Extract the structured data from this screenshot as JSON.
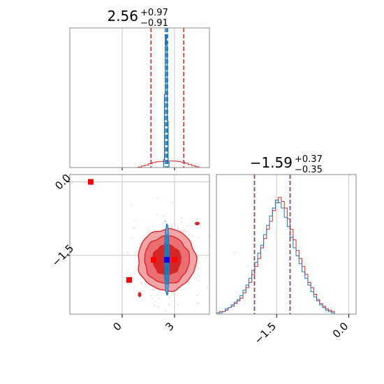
{
  "chart_data": {
    "type": "corner",
    "colors": {
      "red": "#d62728",
      "red_light": "#f3a4a6",
      "red_mid": "#ea6f72",
      "blue": "#1f77b4",
      "grid": "#c8c8c8",
      "frame": "#888888",
      "marker_red": "#ff0000",
      "marker_blue": "#0000ff"
    },
    "param1": {
      "title": {
        "median": "2.56",
        "plus": "+0.97",
        "minus": "−0.91"
      },
      "median": 2.56,
      "quantiles": [
        1.65,
        3.53
      ],
      "blue_quantiles": [
        2.47,
        2.6
      ],
      "xlim": [
        -3.0,
        5.0
      ],
      "ticks": [
        0,
        3
      ],
      "tick_labels": [
        "0",
        "3"
      ],
      "hist_red": [
        0.004,
        0.011,
        0.019,
        0.028,
        0.036,
        0.041,
        0.044,
        0.046,
        0.047,
        0.047,
        0.046,
        0.043,
        0.038,
        0.031,
        0.022,
        0.013,
        0.006
      ],
      "hist_red_range": [
        0.9,
        4.4
      ],
      "hist_blue": [
        0.06,
        0.55,
        1.0,
        0.92,
        0.35,
        0.04
      ],
      "hist_blue_range": [
        2.38,
        2.68
      ]
    },
    "param2": {
      "title": {
        "median": "−1.59",
        "plus": "+0.37",
        "minus": "−0.35"
      },
      "median": -1.59,
      "quantiles": [
        -1.96,
        -1.22
      ],
      "blue_quantiles": [
        -1.96,
        -1.22
      ],
      "xlim": [
        -2.75,
        0.15
      ],
      "ylim": [
        -2.7,
        0.15
      ],
      "ticks": [
        -1.5,
        0.0
      ],
      "tick_labels": [
        "−1.5",
        "0.0"
      ],
      "y_ticks": [
        0.0,
        -1.5
      ],
      "y_tick_labels": [
        "0.0",
        "−1.5"
      ],
      "hist_red": [
        0.01,
        0.02,
        0.02,
        0.03,
        0.05,
        0.06,
        0.08,
        0.1,
        0.12,
        0.16,
        0.2,
        0.24,
        0.3,
        0.36,
        0.42,
        0.5,
        0.57,
        0.64,
        0.7,
        0.78,
        0.84,
        0.88,
        0.85,
        0.8,
        0.72,
        0.64,
        0.56,
        0.48,
        0.42,
        0.36,
        0.3,
        0.24,
        0.2,
        0.15,
        0.11,
        0.08,
        0.06,
        0.04,
        0.03,
        0.02
      ],
      "hist_blue": [
        0.01,
        0.01,
        0.02,
        0.04,
        0.05,
        0.07,
        0.09,
        0.11,
        0.14,
        0.18,
        0.22,
        0.27,
        0.33,
        0.39,
        0.46,
        0.52,
        0.6,
        0.67,
        0.74,
        0.8,
        0.86,
        0.84,
        0.8,
        0.73,
        0.66,
        0.58,
        0.5,
        0.44,
        0.38,
        0.32,
        0.27,
        0.22,
        0.17,
        0.13,
        0.1,
        0.07,
        0.05,
        0.03,
        0.02,
        0.01
      ],
      "hist_range": [
        -2.75,
        -0.3
      ]
    },
    "joint": {
      "center": [
        2.56,
        -1.59
      ],
      "sigma": [
        0.95,
        0.36
      ],
      "blue_center": [
        2.56,
        -1.59
      ],
      "blue_sigma": [
        0.07,
        0.36
      ],
      "red_markers": [
        {
          "x": -1.8,
          "y": 0.0
        },
        {
          "x": 0.4,
          "y": -2.0
        },
        {
          "x": 1.8,
          "y": -1.59
        },
        {
          "x": 3.0,
          "y": -1.59
        }
      ],
      "blue_marker": {
        "x": 2.56,
        "y": -1.59
      }
    }
  }
}
